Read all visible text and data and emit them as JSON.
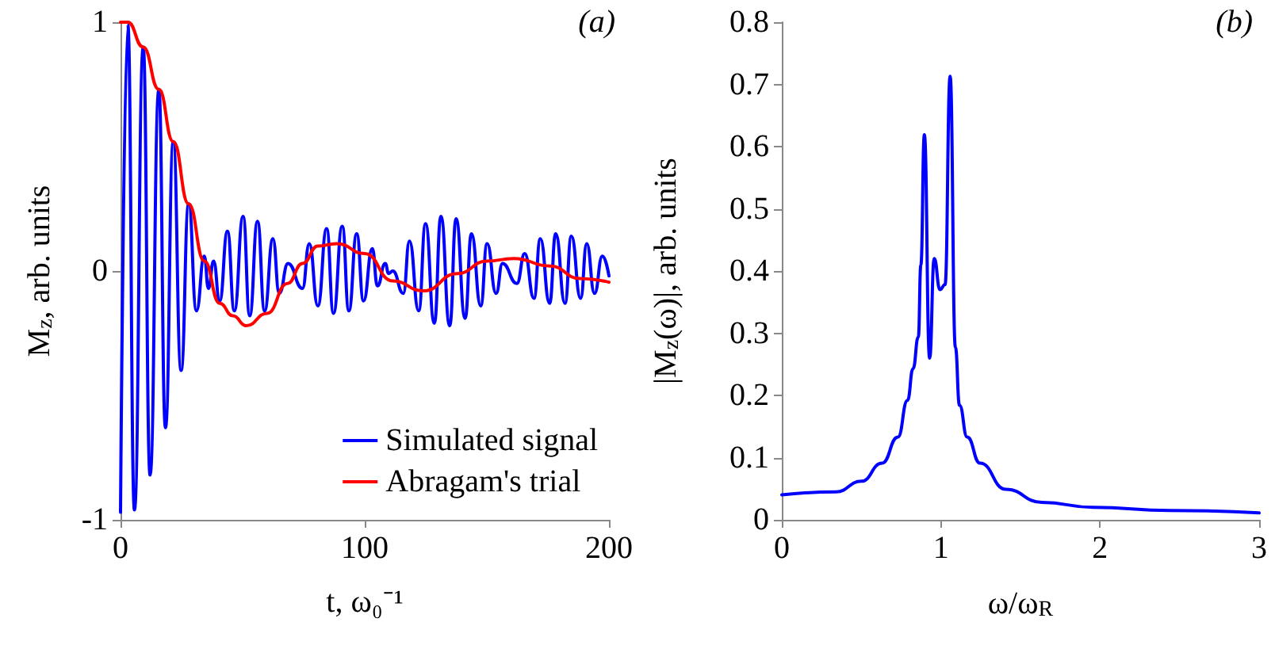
{
  "chart_data": [
    {
      "type": "line",
      "xlabel": "t, ω₀⁻¹",
      "ylabel": "M$_{z}$, arb. units",
      "annotations": [
        "(a)"
      ],
      "xlim": [
        0,
        200
      ],
      "xticks": [
        0,
        100,
        200
      ],
      "ylim": [
        -1,
        1
      ],
      "yticks": [
        -1,
        0,
        1
      ],
      "grid": false,
      "legend": "bottom right",
      "marker": "none",
      "line_style": "solid",
      "series": [
        {
          "name": "Simulated signal",
          "color": "#0000ff",
          "x": [
            0,
            3,
            5.7,
            9.3,
            12.1,
            15.7,
            18.4,
            21.6,
            24.8,
            27.9,
            31.1,
            34.3,
            36,
            38.1,
            40.6,
            43.8,
            46.6,
            50.2,
            52.9,
            56.1,
            59,
            62.4,
            65,
            68.6,
            74.5,
            77.3,
            80.8,
            84.4,
            87.2,
            90.8,
            93.5,
            96.7,
            99.5,
            103.1,
            105.2,
            108.4,
            109.8,
            111.5,
            115.8,
            118.3,
            122.1,
            124.9,
            128.5,
            131.2,
            134.8,
            137.4,
            141.1,
            143.7,
            147.5,
            150.1,
            153.8,
            156.4,
            162.3,
            165.5,
            169.3,
            171.9,
            175.7,
            178.2,
            182,
            184.6,
            188.4,
            190.9,
            194.1,
            197.3,
            200
          ],
          "values": [
            -0.97,
            0.99,
            -0.96,
            0.9,
            -0.82,
            0.73,
            -0.63,
            0.52,
            -0.4,
            0.27,
            -0.16,
            0.06,
            -0.07,
            0.04,
            -0.12,
            0.16,
            -0.16,
            0.22,
            -0.18,
            0.2,
            -0.16,
            0.13,
            -0.09,
            0.03,
            -0.07,
            0.11,
            -0.14,
            0.17,
            -0.17,
            0.18,
            -0.16,
            0.15,
            -0.12,
            0.09,
            -0.06,
            0.03,
            -0.01,
            0,
            -0.09,
            0.12,
            -0.16,
            0.19,
            -0.21,
            0.22,
            -0.22,
            0.21,
            -0.19,
            0.15,
            -0.14,
            0.11,
            -0.09,
            0.03,
            -0.05,
            0.07,
            -0.11,
            0.13,
            -0.13,
            0.15,
            -0.13,
            0.14,
            -0.11,
            0.11,
            -0.09,
            0.06,
            -0.02
          ]
        },
        {
          "name": "Abragam's trial",
          "color": "#ff0000",
          "x": [
            0,
            3,
            9.3,
            15.7,
            21.6,
            27.9,
            34.3,
            40.6,
            46,
            51.5,
            60,
            68.4,
            74.5,
            80.8,
            88.5,
            100,
            111.5,
            124,
            138,
            150,
            161,
            176,
            188,
            200
          ],
          "values": [
            1,
            1,
            0.9,
            0.73,
            0.52,
            0.27,
            0.04,
            -0.13,
            -0.18,
            -0.22,
            -0.17,
            -0.05,
            0.03,
            0.1,
            0.11,
            0.07,
            -0.04,
            -0.08,
            -0.01,
            0.04,
            0.05,
            0.02,
            -0.03,
            -0.045
          ]
        }
      ]
    },
    {
      "type": "line",
      "xlabel": "ω/ω$_{R}$",
      "ylabel": "|M$_{z}$(ω)|, arb. units",
      "annotations": [
        "(b)"
      ],
      "xlim": [
        0,
        3
      ],
      "xticks": [
        0,
        1,
        2,
        3
      ],
      "ylim": [
        0,
        0.8
      ],
      "yticks": [
        0,
        0.1,
        0.2,
        0.3,
        0.4,
        0.5,
        0.6,
        0.7,
        0.8
      ],
      "grid": false,
      "legend": false,
      "marker": "none",
      "line_style": "solid",
      "series": [
        {
          "color": "#0000ff",
          "x": [
            0,
            0.34,
            0.5,
            0.63,
            0.73,
            0.79,
            0.825,
            0.858,
            0.874,
            0.896,
            0.929,
            0.958,
            0.994,
            1.026,
            1.058,
            1.091,
            1.117,
            1.165,
            1.246,
            1.408,
            1.634,
            1.958,
            2.44,
            3
          ],
          "values": [
            0.04,
            0.045,
            0.062,
            0.091,
            0.133,
            0.192,
            0.243,
            0.294,
            0.41,
            0.619,
            0.26,
            0.42,
            0.37,
            0.378,
            0.713,
            0.277,
            0.184,
            0.133,
            0.091,
            0.049,
            0.028,
            0.02,
            0.015,
            0.011
          ]
        }
      ]
    }
  ]
}
